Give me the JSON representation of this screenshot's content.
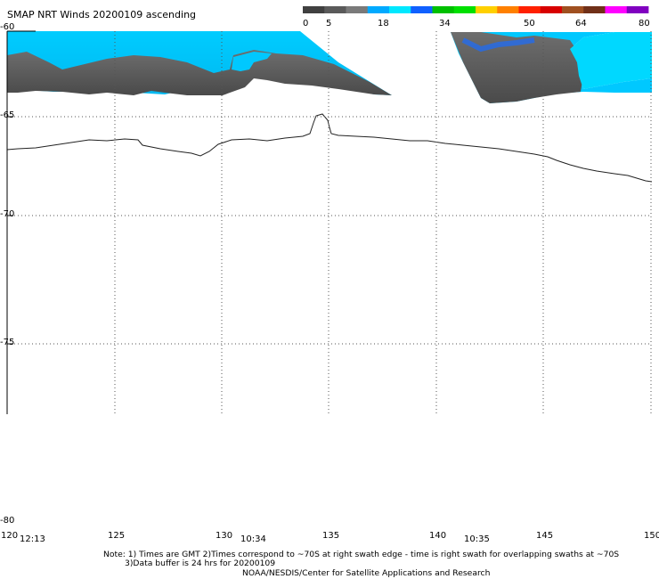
{
  "title": "SMAP NRT Winds 20200109 ascending",
  "colorbar": {
    "labels": [
      "0",
      "5",
      "18",
      "34",
      "50",
      "64",
      "80"
    ],
    "colors": [
      "#404040",
      "#5a5a5a",
      "#7a7a7a",
      "#00aaff",
      "#00e8ff",
      "#1060ff",
      "#00c000",
      "#00e000",
      "#ffd000",
      "#ff8000",
      "#ff2000",
      "#d80000",
      "#a05020",
      "#703018",
      "#ff00ff",
      "#8000c0"
    ]
  },
  "lat_labels": [
    "-60",
    "-65",
    "-70",
    "-75",
    "-80"
  ],
  "lon_labels": [
    "120",
    "125",
    "130",
    "135",
    "140",
    "145",
    "150"
  ],
  "time_labels": [
    "12:13",
    "10:34",
    "10:35"
  ],
  "notes": {
    "line1": "Note: 1) Times are GMT 2)Times correspond to ~70S at right swath edge - time is right swath for overlapping swaths at ~70S",
    "line2": "3)Data buffer is 24 hrs for 20200109",
    "line3": "NOAA/NESDIS/Center for Satellite Applications and Research"
  }
}
